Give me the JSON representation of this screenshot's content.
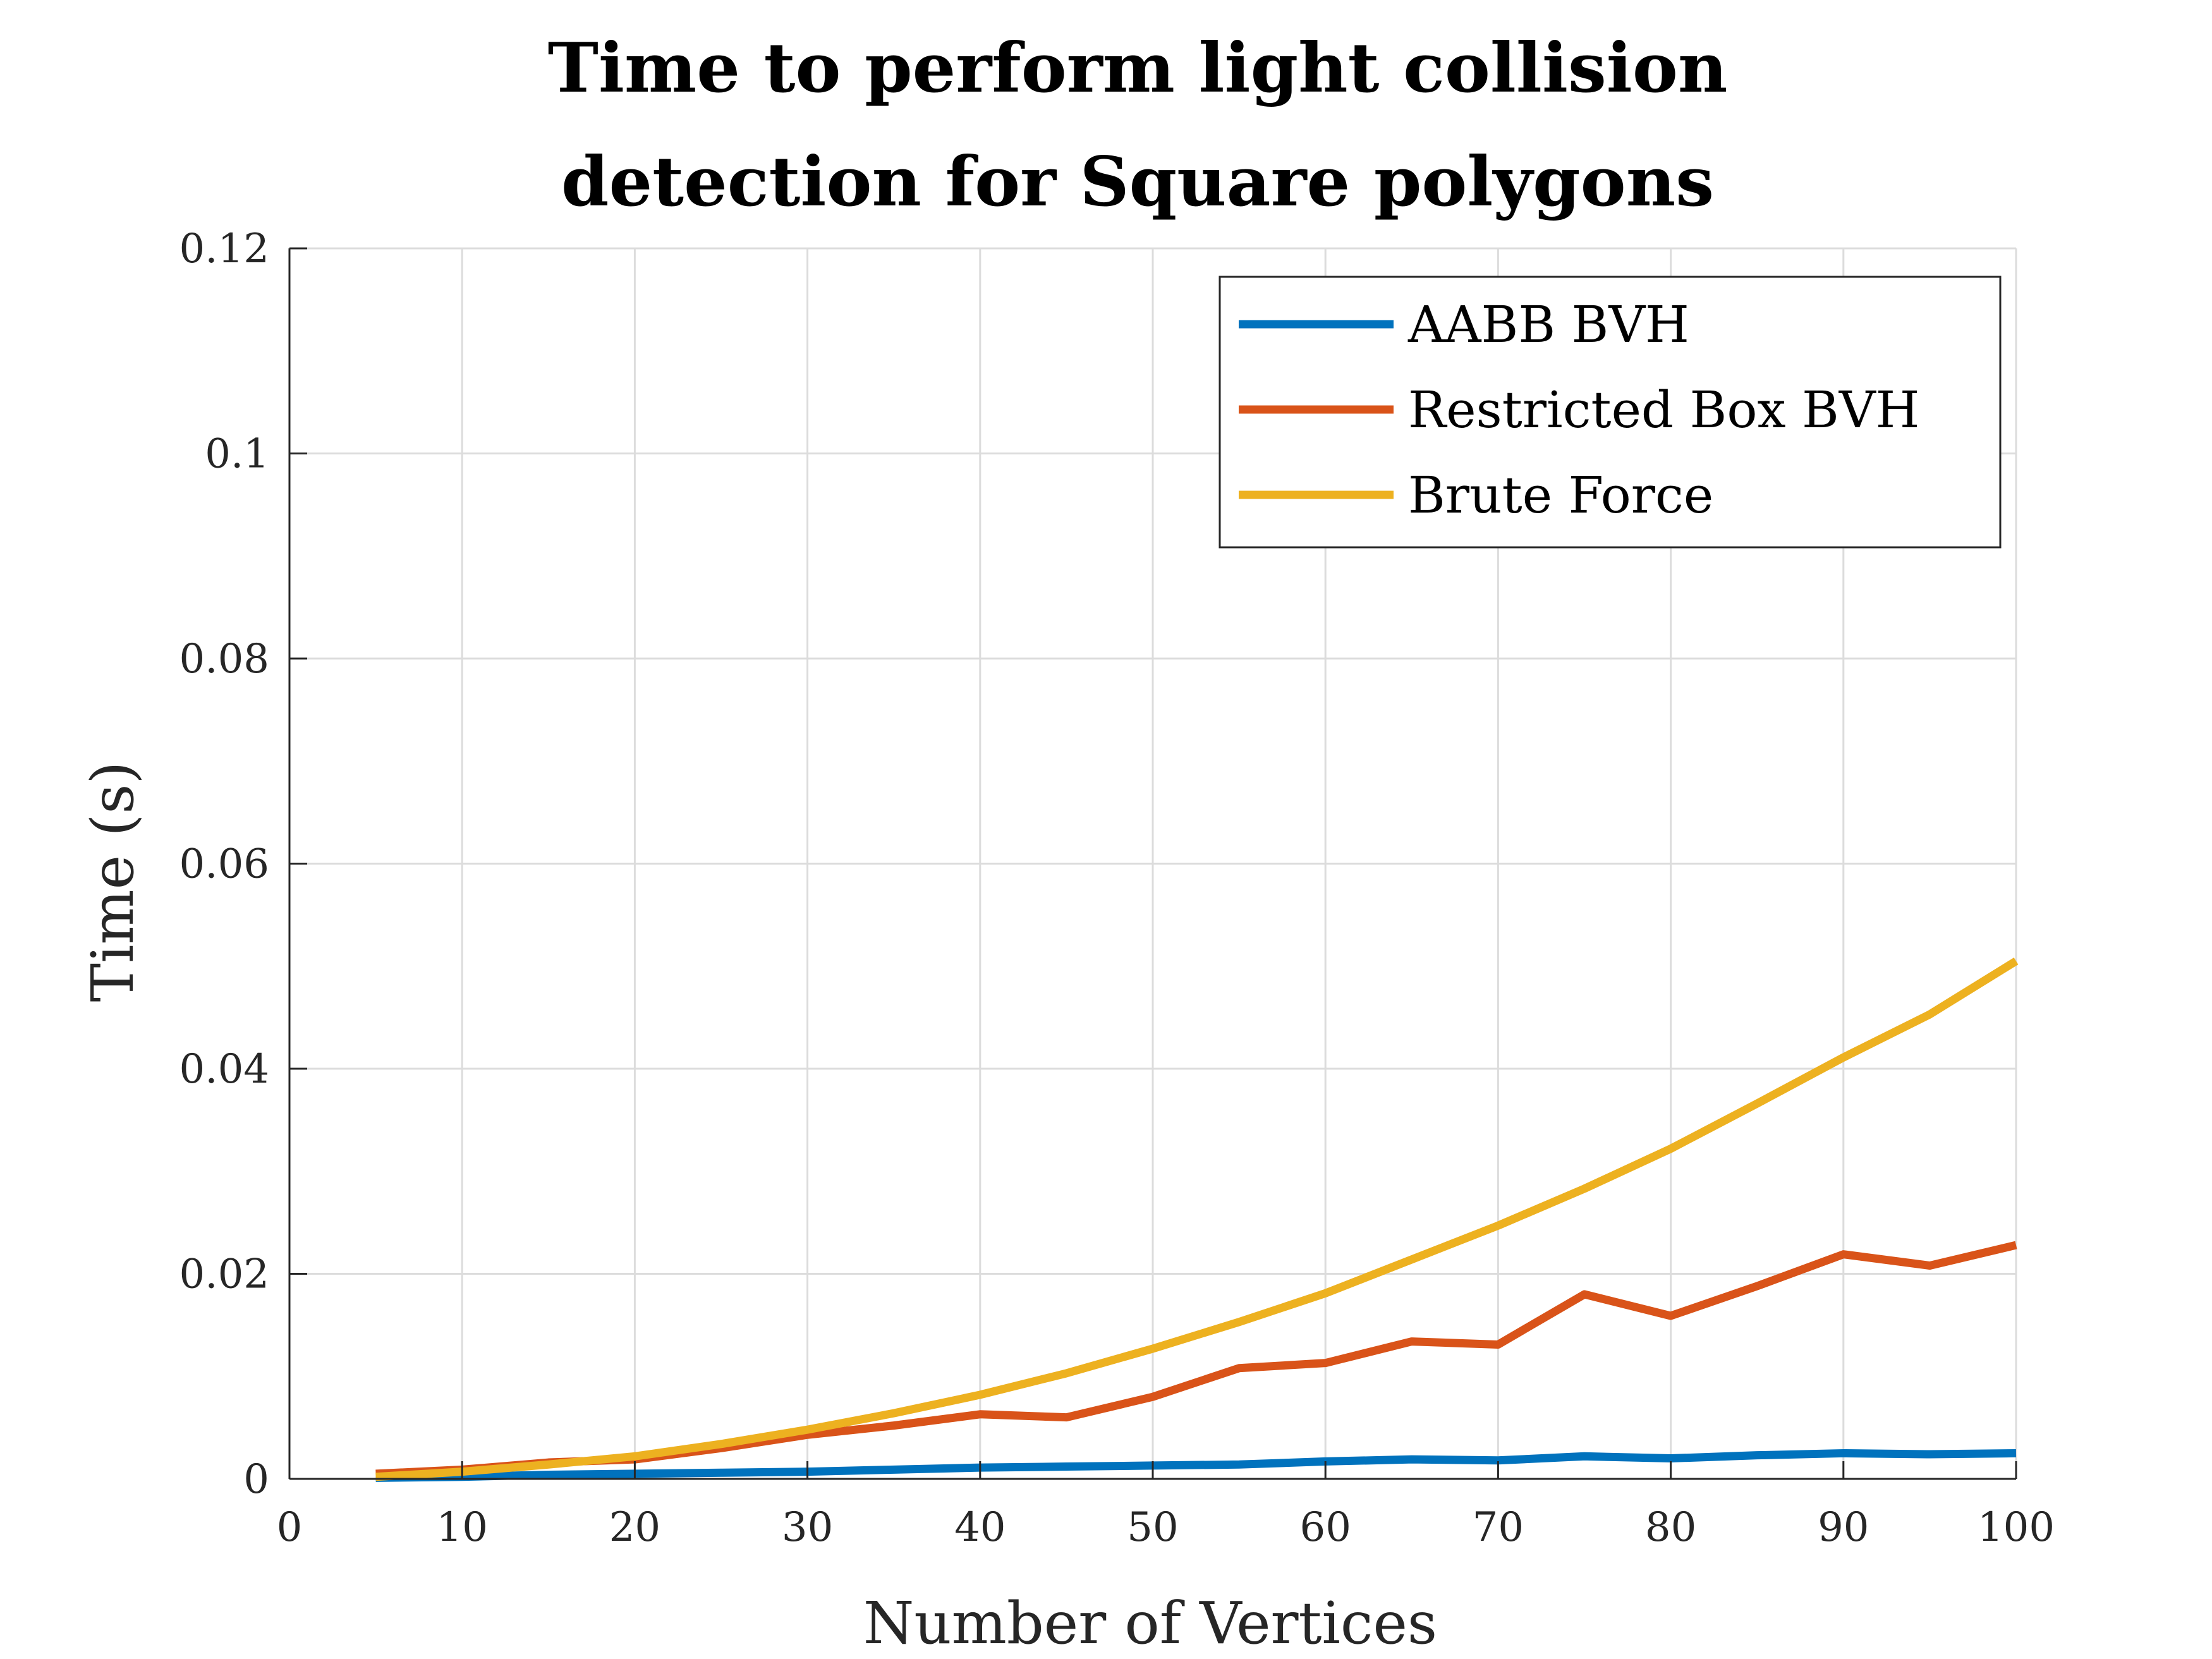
{
  "chart_data": {
    "type": "line",
    "title": [
      "Time to perform light collision",
      "detection for Square polygons"
    ],
    "xlabel": "Number of Vertices",
    "ylabel": "Time (s)",
    "xlim": [
      0,
      100
    ],
    "ylim": [
      0,
      0.12
    ],
    "xticks": [
      "0",
      "10",
      "20",
      "30",
      "40",
      "50",
      "60",
      "70",
      "80",
      "90",
      "100"
    ],
    "yticks": [
      "0",
      "0.02",
      "0.04",
      "0.06",
      "0.08",
      "0.1",
      "0.12"
    ],
    "grid": true,
    "legend_position": "top-right",
    "x": [
      5,
      10,
      15,
      20,
      25,
      30,
      35,
      40,
      45,
      50,
      55,
      60,
      65,
      70,
      75,
      80,
      85,
      90,
      95,
      100
    ],
    "series": [
      {
        "name": "AABB BVH",
        "color": "#0072BD",
        "values": [
          0.0001,
          0.0002,
          0.0004,
          0.0005,
          0.0006,
          0.0007,
          0.0009,
          0.0011,
          0.0012,
          0.0013,
          0.0014,
          0.0017,
          0.0019,
          0.0018,
          0.0022,
          0.002,
          0.0023,
          0.0025,
          0.0024,
          0.0025
        ]
      },
      {
        "name": "Restricted Box BVH",
        "color": "#D95319",
        "values": [
          0.0005,
          0.0009,
          0.0016,
          0.0019,
          0.003,
          0.0043,
          0.0052,
          0.0063,
          0.006,
          0.008,
          0.0108,
          0.0113,
          0.0134,
          0.0131,
          0.018,
          0.0159,
          0.0188,
          0.0219,
          0.0208,
          0.0228
        ]
      },
      {
        "name": "Brute Force",
        "color": "#EDB120",
        "values": [
          0.0002,
          0.0007,
          0.0014,
          0.0022,
          0.0034,
          0.0048,
          0.0064,
          0.0082,
          0.0103,
          0.0127,
          0.0153,
          0.0181,
          0.0214,
          0.0247,
          0.0283,
          0.0322,
          0.0366,
          0.0411,
          0.0453,
          0.0505
        ]
      }
    ]
  }
}
